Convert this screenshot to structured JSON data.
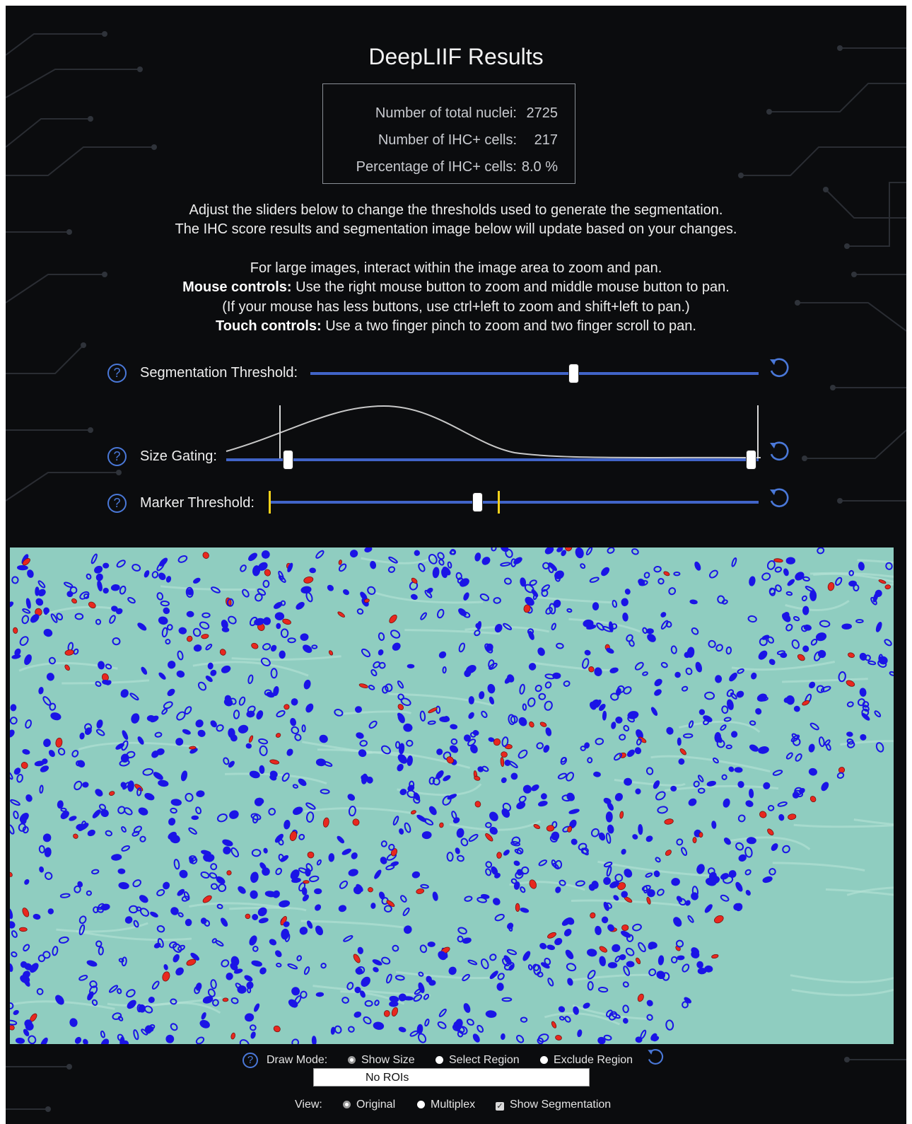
{
  "title": "DeepLIIF Results",
  "stats": [
    {
      "label": "Number of total nuclei:",
      "value": "2725"
    },
    {
      "label": "Number of IHC+ cells:",
      "value": "217"
    },
    {
      "label": "Percentage of IHC+ cells:",
      "value": "8.0 %"
    }
  ],
  "instructions": {
    "line1": "Adjust the sliders below to change the thresholds used to generate the segmentation.",
    "line2": "The IHC score results and segmentation image below will update based on your changes.",
    "line3": "For large images, interact within the image area to zoom and pan.",
    "mouse_label": "Mouse controls:",
    "mouse_text": "Use the right mouse button to zoom and middle mouse button to pan.",
    "line5": "(If your mouse has less buttons, use ctrl+left to zoom and shift+left to pan.)",
    "touch_label": "Touch controls:",
    "touch_text": "Use a two finger pinch to zoom and two finger scroll to pan."
  },
  "help_glyph": "?",
  "sliders": {
    "segmentation": {
      "label": "Segmentation Threshold:",
      "value_fraction": 0.59
    },
    "size_gating": {
      "label": "Size Gating:",
      "low_fraction": 0.11,
      "high_fraction": 0.995
    },
    "marker": {
      "label": "Marker Threshold:",
      "value_fraction": 0.425,
      "marker_low_fraction": 0.0,
      "marker_high_fraction": 0.47
    }
  },
  "icons": {
    "help": "help-icon",
    "reset": "reset-icon"
  },
  "colors": {
    "accent": "#4164c8",
    "marker": "#f5d21b",
    "tissue": "#8fcdc0",
    "negative_nuclei": "#1a14e6",
    "positive_nuclei": "#e8281e"
  },
  "draw_mode": {
    "label": "Draw Mode:",
    "options": [
      {
        "label": "Show Size",
        "checked": true
      },
      {
        "label": "Select Region",
        "checked": false
      },
      {
        "label": "Exclude Region",
        "checked": false
      }
    ],
    "roi_text": "No ROIs"
  },
  "view": {
    "label": "View:",
    "options": [
      {
        "label": "Original",
        "checked": true
      },
      {
        "label": "Multiplex",
        "checked": false
      }
    ],
    "show_segmentation_label": "Show Segmentation",
    "show_segmentation_checked": true
  }
}
